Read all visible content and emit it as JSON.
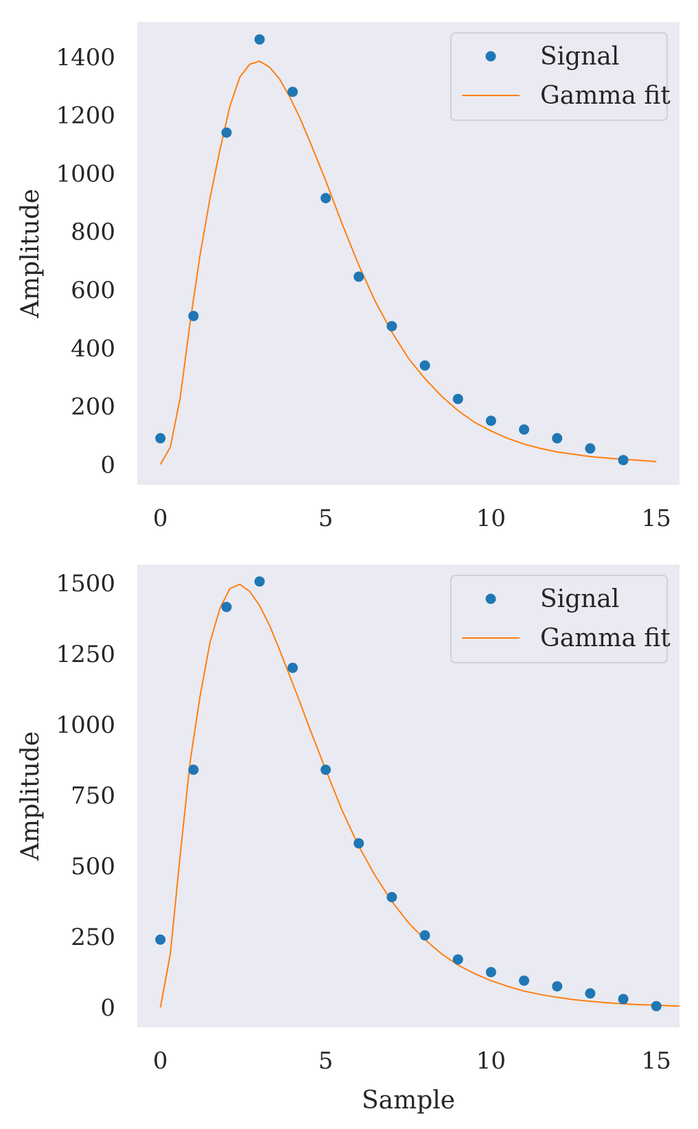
{
  "chart_data": [
    {
      "type": "line",
      "xlim": [
        -0.7,
        15.7
      ],
      "ylim": [
        -70,
        1520
      ],
      "xticks": [
        0,
        5,
        10,
        15
      ],
      "yticks": [
        0,
        200,
        400,
        600,
        800,
        1000,
        1200,
        1400
      ],
      "xlabel": "",
      "ylabel": "Amplitude",
      "grid": false,
      "legend_position": "top-right",
      "series": [
        {
          "name": "Signal",
          "kind": "scatter",
          "color": "#1f77b4",
          "x": [
            0,
            1,
            2,
            3,
            4,
            5,
            6,
            7,
            8,
            9,
            10,
            11,
            12,
            13,
            14
          ],
          "y": [
            90,
            510,
            1140,
            1460,
            1280,
            915,
            645,
            475,
            340,
            225,
            150,
            120,
            90,
            55,
            15
          ]
        },
        {
          "name": "Gamma fit",
          "kind": "line",
          "color": "#ff7f0e",
          "x": [
            0,
            0.3,
            0.6,
            0.9,
            1.2,
            1.5,
            1.8,
            2.1,
            2.4,
            2.7,
            3.0,
            3.3,
            3.6,
            3.9,
            4.2,
            4.5,
            5,
            5.5,
            6,
            6.5,
            7,
            7.5,
            8,
            8.5,
            9,
            9.5,
            10,
            10.5,
            11,
            11.5,
            12,
            12.5,
            13,
            13.5,
            14,
            14.5,
            15
          ],
          "y": [
            0,
            60,
            230,
            490,
            720,
            915,
            1080,
            1230,
            1330,
            1375,
            1385,
            1365,
            1325,
            1265,
            1195,
            1115,
            975,
            825,
            685,
            560,
            455,
            365,
            295,
            235,
            185,
            145,
            115,
            90,
            70,
            55,
            43,
            35,
            27,
            22,
            18,
            14,
            10
          ]
        }
      ]
    },
    {
      "type": "line",
      "xlim": [
        -0.7,
        15.7
      ],
      "ylim": [
        -70,
        1565
      ],
      "xticks": [
        0,
        5,
        10,
        15
      ],
      "yticks": [
        0,
        250,
        500,
        750,
        1000,
        1250,
        1500
      ],
      "xlabel": "Sample",
      "ylabel": "Amplitude",
      "grid": false,
      "legend_position": "top-right",
      "series": [
        {
          "name": "Signal",
          "kind": "scatter",
          "color": "#1f77b4",
          "x": [
            0,
            1,
            2,
            3,
            4,
            5,
            6,
            7,
            8,
            9,
            10,
            11,
            12,
            13,
            14,
            15
          ],
          "y": [
            240,
            840,
            1415,
            1505,
            1200,
            840,
            580,
            390,
            255,
            170,
            125,
            95,
            75,
            50,
            30,
            5
          ]
        },
        {
          "name": "Gamma fit",
          "kind": "line",
          "color": "#ff7f0e",
          "x": [
            0,
            0.3,
            0.6,
            0.9,
            1.2,
            1.5,
            1.8,
            2.1,
            2.4,
            2.7,
            3.0,
            3.3,
            3.6,
            3.9,
            4.2,
            4.5,
            5,
            5.5,
            6,
            6.5,
            7,
            7.5,
            8,
            8.5,
            9,
            9.5,
            10,
            10.5,
            11,
            11.5,
            12,
            12.5,
            13,
            13.5,
            14,
            14.5,
            15,
            15.5,
            16
          ],
          "y": [
            0,
            190,
            540,
            870,
            1100,
            1290,
            1410,
            1480,
            1495,
            1470,
            1420,
            1350,
            1265,
            1175,
            1085,
            990,
            840,
            695,
            570,
            465,
            375,
            300,
            240,
            190,
            150,
            120,
            95,
            75,
            58,
            46,
            36,
            28,
            22,
            17,
            13,
            10,
            8,
            6,
            5
          ]
        }
      ]
    }
  ]
}
